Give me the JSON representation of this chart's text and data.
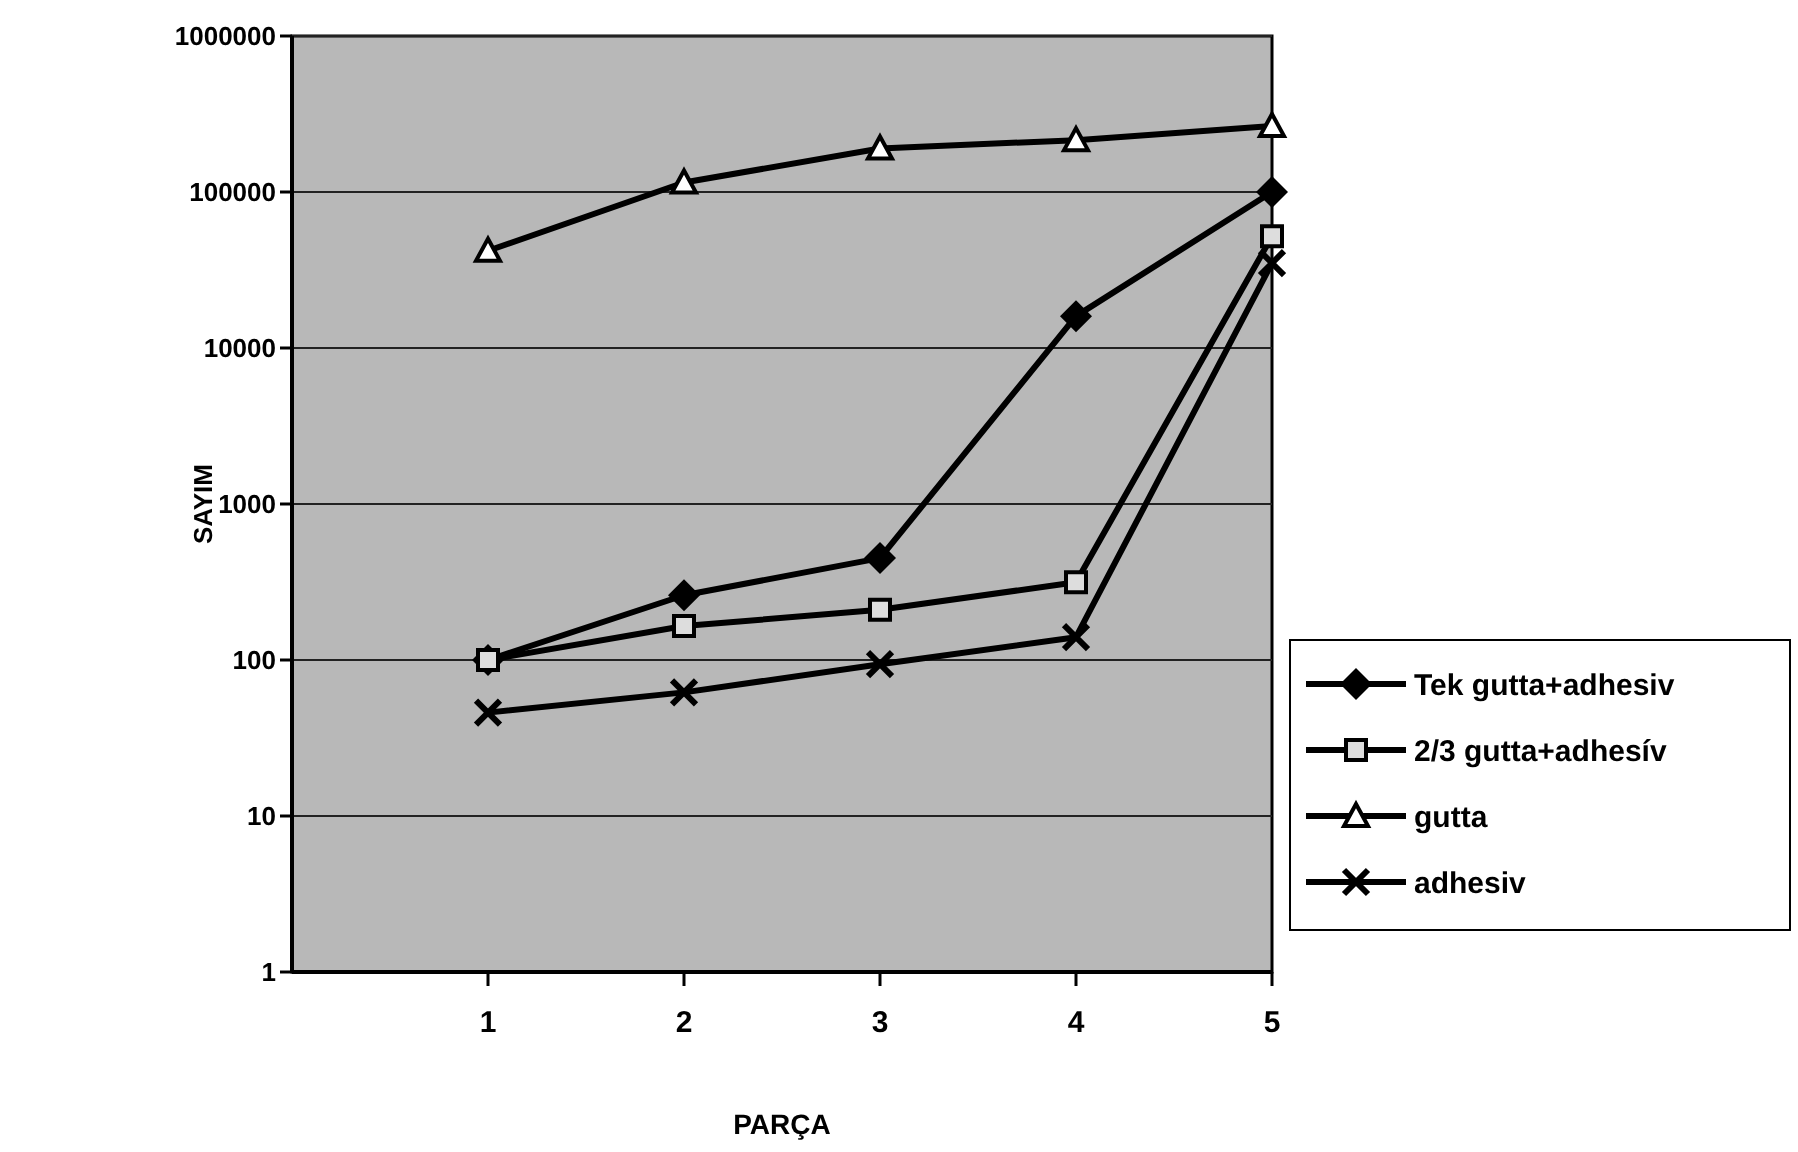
{
  "chart_data": {
    "type": "line",
    "xlabel": "PARÇA",
    "ylabel": "SAYIM",
    "x": [
      1,
      2,
      3,
      4,
      5
    ],
    "xlim": [
      0,
      5
    ],
    "xticks": [
      1,
      2,
      3,
      4,
      5
    ],
    "log": "y",
    "ylim": [
      1,
      1000000
    ],
    "yticks": [
      1,
      10,
      100,
      1000,
      10000,
      100000,
      1000000
    ],
    "grid": "y",
    "legend": "right",
    "series": [
      {
        "name": "Tek gutta+adhesiv",
        "color": "#000000",
        "marker": "diamond",
        "values": [
          100,
          260,
          450,
          16000,
          100000
        ]
      },
      {
        "name": "2/3 gutta+adhesív",
        "color": "#000000",
        "marker": "square",
        "values": [
          100,
          165,
          210,
          315,
          52000
        ]
      },
      {
        "name": "gutta",
        "color": "#000000",
        "marker": "triangle",
        "values": [
          42000,
          115000,
          190000,
          215000,
          265000
        ]
      },
      {
        "name": "adhesiv",
        "color": "#000000",
        "marker": "cross",
        "values": [
          46,
          62,
          94,
          140,
          35000
        ]
      }
    ]
  }
}
